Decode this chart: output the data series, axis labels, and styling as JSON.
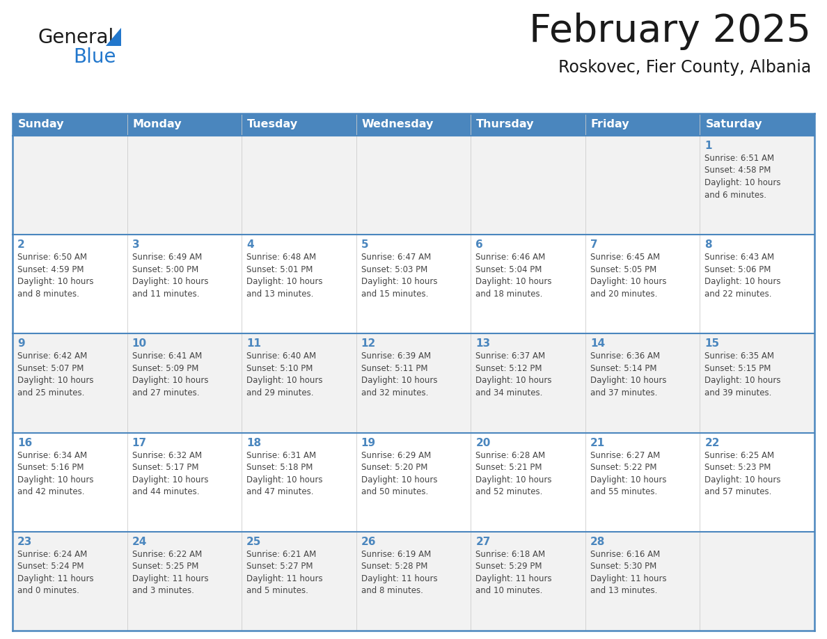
{
  "title": "February 2025",
  "subtitle": "Roskovec, Fier County, Albania",
  "header_bg": "#4a86be",
  "header_text_color": "#ffffff",
  "cell_bg_light": "#f2f2f2",
  "cell_bg_white": "#ffffff",
  "day_number_color": "#4a86be",
  "text_color": "#444444",
  "border_color": "#4a86be",
  "logo_black": "#1a1a1a",
  "logo_blue": "#2277cc",
  "days_of_week": [
    "Sunday",
    "Monday",
    "Tuesday",
    "Wednesday",
    "Thursday",
    "Friday",
    "Saturday"
  ],
  "weeks": [
    [
      {
        "day": null,
        "info": null
      },
      {
        "day": null,
        "info": null
      },
      {
        "day": null,
        "info": null
      },
      {
        "day": null,
        "info": null
      },
      {
        "day": null,
        "info": null
      },
      {
        "day": null,
        "info": null
      },
      {
        "day": "1",
        "info": "Sunrise: 6:51 AM\nSunset: 4:58 PM\nDaylight: 10 hours\nand 6 minutes."
      }
    ],
    [
      {
        "day": "2",
        "info": "Sunrise: 6:50 AM\nSunset: 4:59 PM\nDaylight: 10 hours\nand 8 minutes."
      },
      {
        "day": "3",
        "info": "Sunrise: 6:49 AM\nSunset: 5:00 PM\nDaylight: 10 hours\nand 11 minutes."
      },
      {
        "day": "4",
        "info": "Sunrise: 6:48 AM\nSunset: 5:01 PM\nDaylight: 10 hours\nand 13 minutes."
      },
      {
        "day": "5",
        "info": "Sunrise: 6:47 AM\nSunset: 5:03 PM\nDaylight: 10 hours\nand 15 minutes."
      },
      {
        "day": "6",
        "info": "Sunrise: 6:46 AM\nSunset: 5:04 PM\nDaylight: 10 hours\nand 18 minutes."
      },
      {
        "day": "7",
        "info": "Sunrise: 6:45 AM\nSunset: 5:05 PM\nDaylight: 10 hours\nand 20 minutes."
      },
      {
        "day": "8",
        "info": "Sunrise: 6:43 AM\nSunset: 5:06 PM\nDaylight: 10 hours\nand 22 minutes."
      }
    ],
    [
      {
        "day": "9",
        "info": "Sunrise: 6:42 AM\nSunset: 5:07 PM\nDaylight: 10 hours\nand 25 minutes."
      },
      {
        "day": "10",
        "info": "Sunrise: 6:41 AM\nSunset: 5:09 PM\nDaylight: 10 hours\nand 27 minutes."
      },
      {
        "day": "11",
        "info": "Sunrise: 6:40 AM\nSunset: 5:10 PM\nDaylight: 10 hours\nand 29 minutes."
      },
      {
        "day": "12",
        "info": "Sunrise: 6:39 AM\nSunset: 5:11 PM\nDaylight: 10 hours\nand 32 minutes."
      },
      {
        "day": "13",
        "info": "Sunrise: 6:37 AM\nSunset: 5:12 PM\nDaylight: 10 hours\nand 34 minutes."
      },
      {
        "day": "14",
        "info": "Sunrise: 6:36 AM\nSunset: 5:14 PM\nDaylight: 10 hours\nand 37 minutes."
      },
      {
        "day": "15",
        "info": "Sunrise: 6:35 AM\nSunset: 5:15 PM\nDaylight: 10 hours\nand 39 minutes."
      }
    ],
    [
      {
        "day": "16",
        "info": "Sunrise: 6:34 AM\nSunset: 5:16 PM\nDaylight: 10 hours\nand 42 minutes."
      },
      {
        "day": "17",
        "info": "Sunrise: 6:32 AM\nSunset: 5:17 PM\nDaylight: 10 hours\nand 44 minutes."
      },
      {
        "day": "18",
        "info": "Sunrise: 6:31 AM\nSunset: 5:18 PM\nDaylight: 10 hours\nand 47 minutes."
      },
      {
        "day": "19",
        "info": "Sunrise: 6:29 AM\nSunset: 5:20 PM\nDaylight: 10 hours\nand 50 minutes."
      },
      {
        "day": "20",
        "info": "Sunrise: 6:28 AM\nSunset: 5:21 PM\nDaylight: 10 hours\nand 52 minutes."
      },
      {
        "day": "21",
        "info": "Sunrise: 6:27 AM\nSunset: 5:22 PM\nDaylight: 10 hours\nand 55 minutes."
      },
      {
        "day": "22",
        "info": "Sunrise: 6:25 AM\nSunset: 5:23 PM\nDaylight: 10 hours\nand 57 minutes."
      }
    ],
    [
      {
        "day": "23",
        "info": "Sunrise: 6:24 AM\nSunset: 5:24 PM\nDaylight: 11 hours\nand 0 minutes."
      },
      {
        "day": "24",
        "info": "Sunrise: 6:22 AM\nSunset: 5:25 PM\nDaylight: 11 hours\nand 3 minutes."
      },
      {
        "day": "25",
        "info": "Sunrise: 6:21 AM\nSunset: 5:27 PM\nDaylight: 11 hours\nand 5 minutes."
      },
      {
        "day": "26",
        "info": "Sunrise: 6:19 AM\nSunset: 5:28 PM\nDaylight: 11 hours\nand 8 minutes."
      },
      {
        "day": "27",
        "info": "Sunrise: 6:18 AM\nSunset: 5:29 PM\nDaylight: 11 hours\nand 10 minutes."
      },
      {
        "day": "28",
        "info": "Sunrise: 6:16 AM\nSunset: 5:30 PM\nDaylight: 11 hours\nand 13 minutes."
      },
      {
        "day": null,
        "info": null
      }
    ]
  ]
}
